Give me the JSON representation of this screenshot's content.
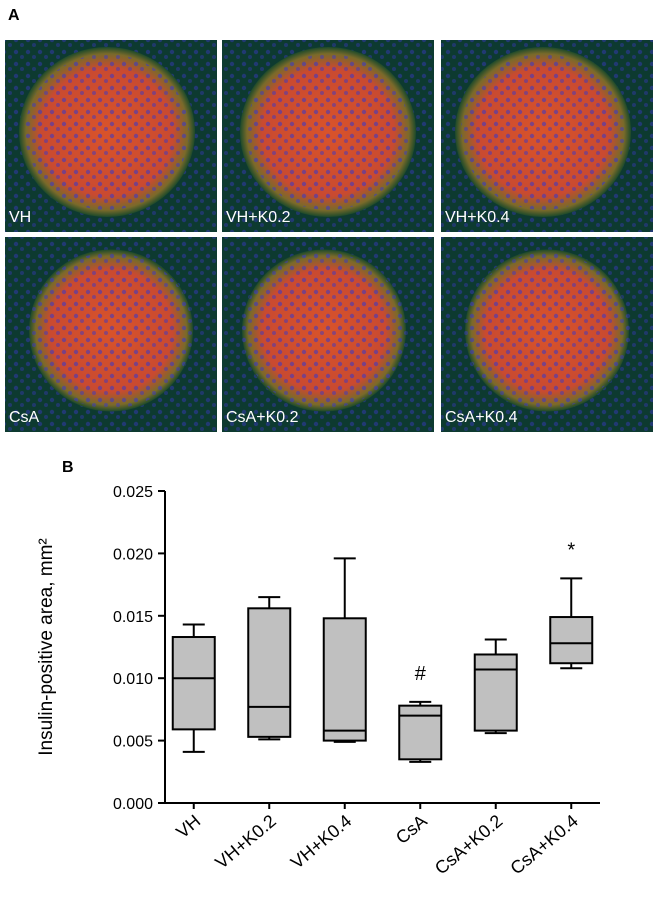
{
  "panel_a": {
    "label": "A",
    "images": [
      {
        "label": "VH"
      },
      {
        "label": "VH+K0.2"
      },
      {
        "label": "VH+K0.4"
      },
      {
        "label": "CsA"
      },
      {
        "label": "CsA+K0.2"
      },
      {
        "label": "CsA+K0.4"
      }
    ]
  },
  "chart_data": {
    "type": "box",
    "panel_label": "B",
    "y_label": "Insulin-positive area, mm²",
    "categories": [
      "VH",
      "VH+K0.2",
      "VH+K0.4",
      "CsA",
      "CsA+K0.2",
      "CsA+K0.4"
    ],
    "series": [
      {
        "color": "#c0c0c0",
        "min": [
          0.0041,
          0.0051,
          0.0049,
          0.0033,
          0.0056,
          0.0108
        ],
        "q1": [
          0.0059,
          0.0053,
          0.005,
          0.0035,
          0.0058,
          0.0112
        ],
        "median": [
          0.01,
          0.0077,
          0.0058,
          0.007,
          0.0107,
          0.0128
        ],
        "q3": [
          0.0133,
          0.0156,
          0.0148,
          0.0078,
          0.0119,
          0.0149
        ],
        "max": [
          0.0143,
          0.0165,
          0.0196,
          0.0081,
          0.0131,
          0.018
        ]
      }
    ],
    "annotations": [
      null,
      null,
      null,
      "#",
      null,
      "*"
    ],
    "ylim": [
      0,
      0.025
    ],
    "yticks": [
      {
        "value": 0,
        "label": "0.000"
      },
      {
        "value": 0.005,
        "label": "0.005"
      },
      {
        "value": 0.01,
        "label": "0.010"
      },
      {
        "value": 0.015,
        "label": "0.015"
      },
      {
        "value": 0.02,
        "label": "0.020"
      },
      {
        "value": 0.025,
        "label": "0.025"
      }
    ]
  }
}
